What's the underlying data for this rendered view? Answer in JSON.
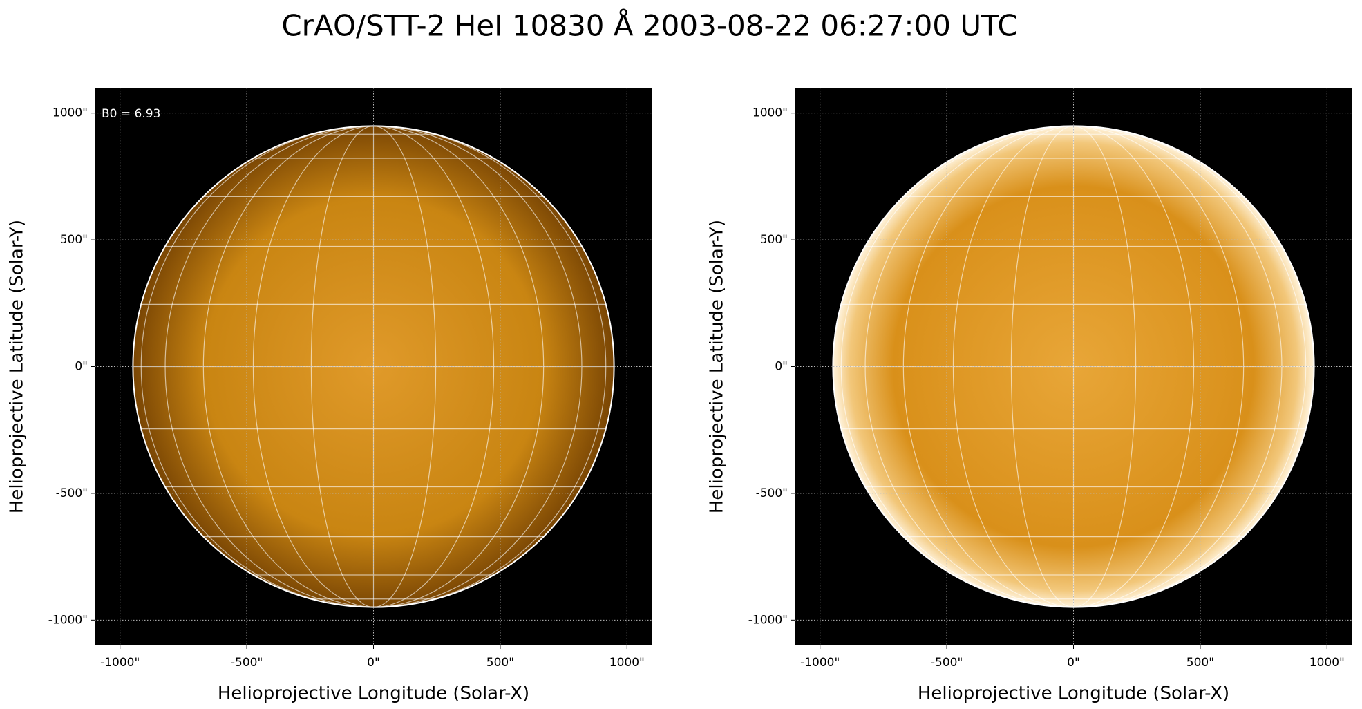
{
  "title": "CrAO/STT-2 HeI 10830 Å 2003-08-22 06:27:00 UTC",
  "chart_data": [
    {
      "type": "image",
      "xlabel": "Helioprojective Longitude (Solar-X)",
      "ylabel": "Helioprojective Latitude (Solar-Y)",
      "annotation": "B0 = 6.93",
      "xlim": [
        -1100,
        1100
      ],
      "ylim": [
        -1100,
        1100
      ],
      "xticks": [
        {
          "value": -1000,
          "label": "-1000\""
        },
        {
          "value": -500,
          "label": "-500\""
        },
        {
          "value": 0,
          "label": "0\""
        },
        {
          "value": 500,
          "label": "500\""
        },
        {
          "value": 1000,
          "label": "1000\""
        }
      ],
      "yticks": [
        {
          "value": -1000,
          "label": "-1000\""
        },
        {
          "value": -500,
          "label": "-500\""
        },
        {
          "value": 0,
          "label": "0\""
        },
        {
          "value": 500,
          "label": "500\""
        },
        {
          "value": 1000,
          "label": "1000\""
        }
      ],
      "grid": true,
      "disk_radius": 949,
      "color": "#c98512"
    },
    {
      "type": "image",
      "xlabel": "Helioprojective Longitude (Solar-X)",
      "ylabel": "Helioprojective Latitude (Solar-Y)",
      "xlim": [
        -1100,
        1100
      ],
      "ylim": [
        -1100,
        1100
      ],
      "xticks": [
        {
          "value": -1000,
          "label": "-1000\""
        },
        {
          "value": -500,
          "label": "-500\""
        },
        {
          "value": 0,
          "label": "0\""
        },
        {
          "value": 500,
          "label": "500\""
        },
        {
          "value": 1000,
          "label": "1000\""
        }
      ],
      "yticks": [
        {
          "value": -1000,
          "label": "-1000\""
        },
        {
          "value": -500,
          "label": "-500\""
        },
        {
          "value": 0,
          "label": "0\""
        },
        {
          "value": 500,
          "label": "500\""
        },
        {
          "value": 1000,
          "label": "1000\""
        }
      ],
      "grid": true,
      "disk_radius": 949,
      "color": "#d9901a"
    }
  ]
}
